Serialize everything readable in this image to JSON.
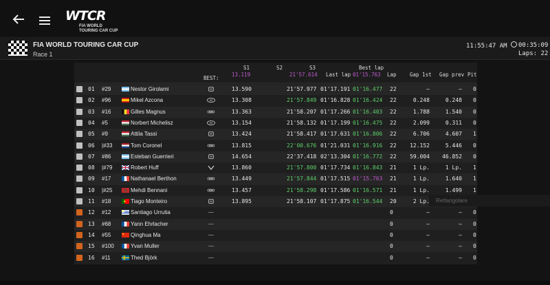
{
  "top": {
    "logo_mark": "WTCR",
    "logo_sub_line1": "FIA WORLD",
    "logo_sub_line2": "TOURING CAR CUP"
  },
  "session": {
    "title": "FIA WORLD TOURING CAR CUP",
    "race": "Race 1",
    "clock": "11:55:47 AM",
    "elapsed": "00:35:09",
    "laps": "Laps: 22"
  },
  "header": {
    "best_label": "BEST:",
    "s1": "S1",
    "s1_best": "13.119",
    "s2": "S2",
    "s3": "S3",
    "s3_best": "21'57.614",
    "last_lap": "Last lap",
    "best_lap": "Best lap",
    "best_lap_best": "01'15.763",
    "lap": "Lap",
    "gap_1st": "Gap 1st",
    "gap_prev": "Gap prev",
    "pit": "Pit"
  },
  "rows": [
    {
      "pos": "01",
      "num": "#29",
      "name": "Nestor Girolami",
      "nat": "ar",
      "brand": "honda",
      "s1": "13.590",
      "s3": "21'57.977",
      "s3c": "",
      "last": "01'17.191",
      "best": "01'16.477",
      "bestc": "green",
      "lap": "22",
      "gap1": "–",
      "gapp": "–",
      "pit": "0",
      "status": "ok"
    },
    {
      "pos": "02",
      "num": "#96",
      "name": "Mikel Azcona",
      "nat": "es",
      "brand": "hyundai",
      "s1": "13.308",
      "s3": "21'57.849",
      "s3c": "green",
      "last": "01'16.828",
      "best": "01'16.424",
      "bestc": "green",
      "lap": "22",
      "gap1": "0.248",
      "gapp": "0.248",
      "pit": "0",
      "status": "ok"
    },
    {
      "pos": "03",
      "num": "#16",
      "name": "Gilles Magnus",
      "nat": "be",
      "brand": "audi",
      "s1": "13.363",
      "s3": "21'58.207",
      "s3c": "",
      "last": "01'17.266",
      "best": "01'16.403",
      "bestc": "green",
      "lap": "22",
      "gap1": "1.788",
      "gapp": "1.540",
      "pit": "0",
      "status": "ok"
    },
    {
      "pos": "04",
      "num": "#5",
      "name": "Norbert Michelisz",
      "nat": "hu",
      "brand": "hyundai",
      "s1": "13.154",
      "s3": "21'58.132",
      "s3c": "",
      "last": "01'17.199",
      "best": "01'16.475",
      "bestc": "green",
      "lap": "22",
      "gap1": "2.099",
      "gapp": "0.311",
      "pit": "0",
      "status": "ok"
    },
    {
      "pos": "05",
      "num": "#9",
      "name": "Attila Tassi",
      "nat": "hu",
      "brand": "honda",
      "s1": "13.424",
      "s3": "21'58.417",
      "s3c": "",
      "last": "01'17.631",
      "best": "01'16.806",
      "bestc": "green",
      "lap": "22",
      "gap1": "6.706",
      "gapp": "4.607",
      "pit": "1",
      "status": "ok"
    },
    {
      "pos": "06",
      "num": "|#33",
      "name": "Tom Coronel",
      "nat": "nl",
      "brand": "audi",
      "s1": "13.815",
      "s3": "22'00.676",
      "s3c": "green",
      "last": "01'21.031",
      "best": "01'16.916",
      "bestc": "green",
      "lap": "22",
      "gap1": "12.152",
      "gapp": "5.446",
      "pit": "0",
      "status": "ok"
    },
    {
      "pos": "07",
      "num": "#86",
      "name": "Esteban Guerrieri",
      "nat": "ar",
      "brand": "honda",
      "s1": "14.654",
      "s3": "22'37.418",
      "s3c": "",
      "last": "02'13.304",
      "best": "01'16.772",
      "bestc": "green",
      "lap": "22",
      "gap1": "59.004",
      "gapp": "46.852",
      "pit": "0",
      "status": "ok"
    },
    {
      "pos": "08",
      "num": "|#79",
      "name": "Robert Huff",
      "nat": "gb",
      "brand": "vw",
      "s1": "13.860",
      "s3": "21'57.800",
      "s3c": "green",
      "last": "01'17.734",
      "best": "01'16.843",
      "bestc": "green",
      "lap": "21",
      "gap1": "1 Lp.",
      "gapp": "1 Lp.",
      "pit": "1",
      "status": "ok"
    },
    {
      "pos": "09",
      "num": "#17",
      "name": "Nathanael Berthon",
      "nat": "fr",
      "brand": "audi",
      "s1": "13.449",
      "s3": "21'57.844",
      "s3c": "green",
      "last": "01'17.515",
      "best": "01'15.763",
      "bestc": "purple",
      "lap": "21",
      "gap1": "1 Lp.",
      "gapp": "1.640",
      "pit": "1",
      "status": "ok"
    },
    {
      "pos": "10",
      "num": "|#25",
      "name": "Mehdi Bennani",
      "nat": "ma",
      "brand": "audi",
      "s1": "13.457",
      "s3": "21'58.298",
      "s3c": "green",
      "last": "01'17.586",
      "best": "01'16.571",
      "bestc": "green",
      "lap": "21",
      "gap1": "1 Lp.",
      "gapp": "1.499",
      "pit": "1",
      "status": "ok"
    },
    {
      "pos": "11",
      "num": "#18",
      "name": "Tiago Monteiro",
      "nat": "pt",
      "brand": "honda",
      "s1": "13.895",
      "s3": "21'58.107",
      "s3c": "",
      "last": "01'17.875",
      "best": "01'16.544",
      "bestc": "green",
      "lap": "20",
      "gap1": "2 Lp.",
      "gapp": "1 Lp.",
      "pit": "0",
      "status": "ok"
    },
    {
      "pos": "12",
      "num": "#12",
      "name": "Santiago Urrutia",
      "nat": "uy",
      "brand": "none",
      "s1": "",
      "s3": "",
      "s3c": "",
      "last": "",
      "best": "",
      "bestc": "",
      "lap": "0",
      "gap1": "–",
      "gapp": "–",
      "pit": "0",
      "status": "out"
    },
    {
      "pos": "13",
      "num": "#68",
      "name": "Yann Ehrlacher",
      "nat": "fr",
      "brand": "none",
      "s1": "",
      "s3": "",
      "s3c": "",
      "last": "",
      "best": "",
      "bestc": "",
      "lap": "0",
      "gap1": "–",
      "gapp": "–",
      "pit": "0",
      "status": "out"
    },
    {
      "pos": "14",
      "num": "#55",
      "name": "Qinghua Ma",
      "nat": "cn",
      "brand": "none",
      "s1": "",
      "s3": "",
      "s3c": "",
      "last": "",
      "best": "",
      "bestc": "",
      "lap": "0",
      "gap1": "–",
      "gapp": "–",
      "pit": "0",
      "status": "out"
    },
    {
      "pos": "15",
      "num": "#100",
      "name": "Yvan Muller",
      "nat": "fr",
      "brand": "none",
      "s1": "",
      "s3": "",
      "s3c": "",
      "last": "",
      "best": "",
      "bestc": "",
      "lap": "0",
      "gap1": "–",
      "gapp": "–",
      "pit": "0",
      "status": "out"
    },
    {
      "pos": "16",
      "num": "#11",
      "name": "Thed Björk",
      "nat": "se",
      "brand": "none",
      "s1": "",
      "s3": "",
      "s3c": "",
      "last": "",
      "best": "",
      "bestc": "",
      "lap": "0",
      "gap1": "–",
      "gapp": "–",
      "pit": "0",
      "status": "out"
    }
  ],
  "overlay_text": "Rettangolare",
  "colors": {
    "purple": "#c05bd0",
    "green": "#5ed06a",
    "out": "#d2641e"
  }
}
